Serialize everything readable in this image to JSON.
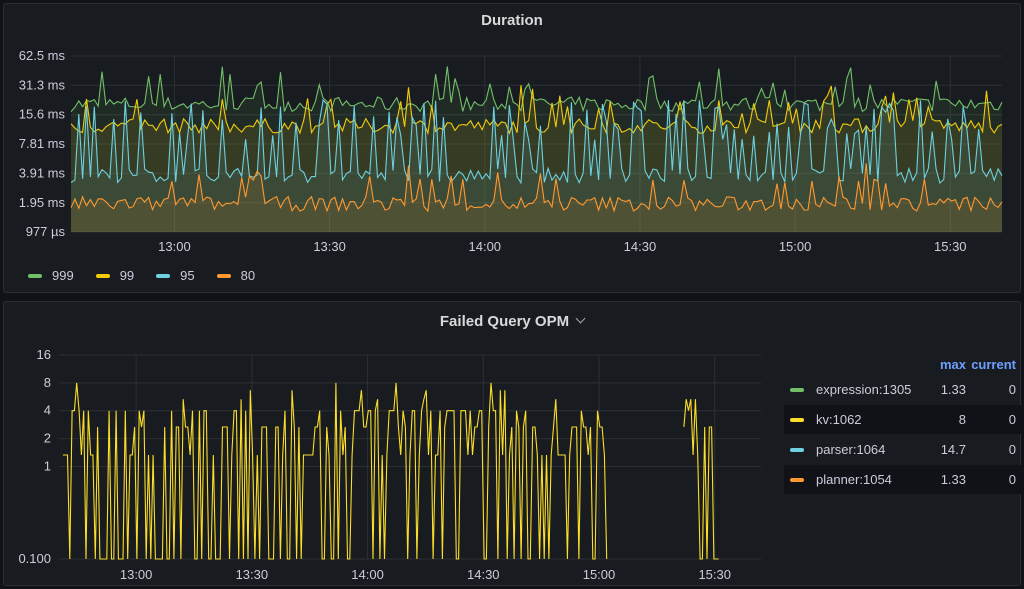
{
  "panels": [
    {
      "title": "Duration"
    },
    {
      "title": "Failed Query OPM"
    }
  ],
  "colors": {
    "green": "#73bf69",
    "yellow": "#f2cc0c",
    "blue": "#8ab8ff",
    "orange": "#ff9830",
    "cyan": "#6ed0e0",
    "yellow2": "#fade2a",
    "orange2": "#ff9830"
  },
  "chart_data": [
    {
      "type": "area",
      "title": "Duration",
      "y_scale": "log2",
      "yticks": [
        "62.5 ms",
        "31.3 ms",
        "15.6 ms",
        "7.81 ms",
        "3.91 ms",
        "1.95 ms",
        "977 µs"
      ],
      "xticks": [
        "13:00",
        "13:30",
        "14:00",
        "14:30",
        "15:00",
        "15:30"
      ],
      "x_range": [
        "12:40",
        "15:40"
      ],
      "y_range_ms": [
        0.977,
        62.5
      ],
      "grid": true,
      "legend_placement": "bottom-left",
      "series": [
        {
          "name": "999",
          "color": "#73bf69",
          "baseline_ms": 20,
          "spiky": false
        },
        {
          "name": "99",
          "color": "#f2cc0c",
          "baseline_ms": 12,
          "spiky": false
        },
        {
          "name": "95",
          "color": "#6ed0e0",
          "baseline_ms": 3.7,
          "spiky": true
        },
        {
          "name": "80",
          "color": "#ff9830",
          "baseline_ms": 1.9,
          "spiky": false
        }
      ]
    },
    {
      "type": "line",
      "title": "Failed Query OPM",
      "y_scale": "log",
      "yticks": [
        "16",
        "8",
        "4",
        "2",
        "1",
        "0.100"
      ],
      "xticks": [
        "13:00",
        "13:30",
        "14:00",
        "14:30",
        "15:00",
        "15:30"
      ],
      "x_range": [
        "12:40",
        "15:42"
      ],
      "y_range": [
        0.1,
        16
      ],
      "grid": true,
      "legend_placement": "right",
      "legend_columns": [
        "max",
        "current"
      ],
      "series": [
        {
          "name": "expression:1305",
          "color": "#73bf69",
          "max": "1.33",
          "current": "0"
        },
        {
          "name": "kv:1062",
          "color": "#fade2a",
          "max": "8",
          "current": "0"
        },
        {
          "name": "parser:1064",
          "color": "#6ed0e0",
          "max": "14.7",
          "current": "0"
        },
        {
          "name": "planner:1054",
          "color": "#ff9830",
          "max": "1.33",
          "current": "0"
        }
      ]
    }
  ]
}
